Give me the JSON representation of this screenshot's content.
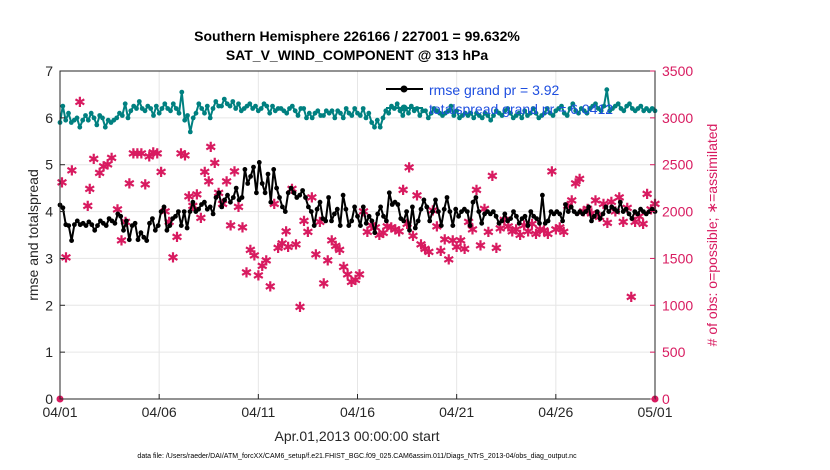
{
  "chart_data": {
    "type": "line",
    "title_line1": "Southern Hemisphere 226166 / 227001 = 99.632%",
    "title_line2": "SAT_V_WIND_COMPONENT @ 313 hPa",
    "xlabel": "Apr.01,2013 00:00:00 start",
    "ylabel_left": "rmse and totalspread",
    "ylabel_right": "# of obs: o=possible; ∗=assimilated",
    "footnote": "data file: /Users/raeder/DAI/ATM_forcXX/CAM6_setup/f.e21.FHIST_BGC.f09_025.CAM6assim.011/Diags_NTrS_2013-04/obs_diag_output.nc",
    "x_range": [
      0,
      30
    ],
    "x_ticks": [
      0,
      5,
      10,
      15,
      20,
      25,
      30
    ],
    "x_tick_labels": [
      "04/01",
      "04/06",
      "04/11",
      "04/16",
      "04/21",
      "04/26",
      "05/01"
    ],
    "ylim_left": [
      0,
      7
    ],
    "y_ticks_left": [
      "0",
      "1",
      "2",
      "3",
      "4",
      "5",
      "6",
      "7"
    ],
    "ylim_right": [
      0,
      3500
    ],
    "y_ticks_right": [
      "0",
      "500",
      "1000",
      "1500",
      "2000",
      "2500",
      "3000",
      "3500"
    ],
    "grid": true,
    "legend_position": "top-right",
    "colors": {
      "rmse": "#000000",
      "totalspread": "#008080",
      "obs": "#d81b60",
      "legend_text": "#1f4fe0",
      "right_axis": "#d81b60"
    },
    "series": [
      {
        "name": "rmse grand pr = 3.92",
        "color": "#000000",
        "values": [
          4.14,
          4.08,
          3.72,
          3.7,
          3.38,
          3.72,
          3.8,
          3.72,
          3.75,
          3.7,
          3.78,
          3.72,
          3.6,
          3.7,
          3.8,
          3.75,
          3.7,
          3.85,
          3.8,
          3.75,
          3.95,
          3.9,
          3.6,
          3.8,
          3.4,
          3.7,
          3.75,
          3.4,
          3.55,
          3.45,
          3.38,
          3.75,
          3.85,
          3.6,
          3.7,
          4.0,
          4.1,
          3.6,
          3.7,
          3.85,
          3.9,
          4.0,
          3.7,
          4.0,
          3.65,
          4.0,
          4.2,
          4.0,
          4.05,
          4.15,
          4.2,
          4.05,
          4.1,
          3.95,
          4.3,
          4.4,
          4.1,
          4.25,
          4.35,
          4.2,
          4.3,
          4.5,
          4.25,
          4.3,
          4.9,
          4.6,
          4.75,
          4.95,
          4.4,
          5.05,
          4.6,
          4.4,
          4.8,
          4.2,
          4.9,
          4.5,
          4.3,
          4.1,
          4.0,
          4.4,
          4.5,
          4.4,
          4.3,
          4.35,
          4.45,
          4.3,
          4.1,
          4.0,
          3.7,
          4.05,
          4.2,
          3.85,
          3.8,
          4.3,
          3.8,
          3.95,
          4.05,
          3.7,
          4.35,
          4.05,
          3.7,
          3.8,
          4.1,
          3.9,
          3.7,
          4.1,
          3.75,
          3.9,
          3.8,
          3.55,
          3.95,
          4.1,
          3.9,
          3.8,
          4.4,
          4.15,
          4.2,
          4.15,
          3.85,
          3.8,
          4.0,
          3.6,
          4.1,
          3.65,
          3.8,
          4.05,
          4.25,
          4.1,
          3.8,
          4.0,
          4.25,
          4.0,
          3.7,
          4.05,
          4.3,
          4.0,
          3.7,
          4.05,
          3.9,
          4.0,
          4.05,
          4.0,
          3.7,
          4.2,
          4.3,
          4.0,
          3.75,
          3.95,
          4.0,
          3.95,
          4.0,
          3.9,
          3.75,
          3.8,
          3.95,
          3.8,
          3.85,
          4.0,
          3.9,
          3.75,
          3.85,
          3.9,
          3.7,
          4.0,
          3.9,
          3.85,
          3.75,
          4.35,
          3.75,
          3.8,
          4.0,
          3.95,
          4.0,
          3.95,
          3.8,
          4.15,
          4.0,
          4.1,
          4.0,
          3.95,
          4.0,
          3.95,
          4.0,
          4.1,
          3.8,
          3.9,
          4.0,
          3.85,
          3.95,
          4.1,
          4.0,
          4.1,
          4.05,
          4.0,
          4.2,
          4.0,
          4.05,
          3.95,
          3.85,
          4.0,
          3.95,
          4.05,
          4.0,
          3.95,
          4.0,
          4.05,
          4.0
        ]
      },
      {
        "name": "totalspread grand pr = 6.0412",
        "color": "#008080",
        "values": [
          5.9,
          6.25,
          5.95,
          6.1,
          5.9,
          5.95,
          6.0,
          5.8,
          5.95,
          6.05,
          5.95,
          6.1,
          6.0,
          5.85,
          6.05,
          6.0,
          5.8,
          5.95,
          5.9,
          5.95,
          6.0,
          6.1,
          6.05,
          6.3,
          6.0,
          6.15,
          6.25,
          6.2,
          6.35,
          6.2,
          6.15,
          6.25,
          6.2,
          6.05,
          6.25,
          6.1,
          6.2,
          6.3,
          6.2,
          6.15,
          6.3,
          6.2,
          6.1,
          6.55,
          5.95,
          6.05,
          5.7,
          6.0,
          6.1,
          6.3,
          6.2,
          6.1,
          6.25,
          6.0,
          6.2,
          6.35,
          6.25,
          6.25,
          6.4,
          6.3,
          6.25,
          6.35,
          6.2,
          6.3,
          6.15,
          6.2,
          6.25,
          6.3,
          6.2,
          6.25,
          6.15,
          6.2,
          6.3,
          6.25,
          6.1,
          6.25,
          6.15,
          6.2,
          6.2,
          6.15,
          6.1,
          6.2,
          6.25,
          6.15,
          6.05,
          6.2,
          6.2,
          6.0,
          6.1,
          6.0,
          6.1,
          6.15,
          6.05,
          6.05,
          6.15,
          6.1,
          6.15,
          6.0,
          6.15,
          6.1,
          6.0,
          6.2,
          6.1,
          6.05,
          6.2,
          6.1,
          6.05,
          6.2,
          6.0,
          6.1,
          5.9,
          5.8,
          5.95,
          5.8,
          6.0,
          6.15,
          6.1,
          6.25,
          6.2,
          6.3,
          6.15,
          6.05,
          6.2,
          6.1,
          6.25,
          6.15,
          6.2,
          6.05,
          6.15,
          6.15,
          6.0,
          6.1,
          6.2,
          6.15,
          6.1,
          6.05,
          6.1,
          6.15,
          6.25,
          6.05,
          6.15,
          6.0,
          6.05,
          6.1,
          6.05,
          6.1,
          6.0,
          6.1,
          6.05,
          6.0,
          6.1,
          6.05,
          5.95,
          6.05,
          6.15,
          6.1,
          6.05,
          6.15,
          6.2,
          6.1,
          6.0,
          6.05,
          6.1,
          6.0,
          6.15,
          6.05,
          6.1,
          6.2,
          6.1,
          6.0,
          6.05,
          6.1,
          6.2,
          6.1,
          6.05,
          6.15,
          6.2,
          6.25,
          6.1,
          6.05,
          6.2,
          6.3,
          6.15,
          6.1,
          6.2,
          6.15,
          6.1,
          6.2,
          6.25,
          6.3,
          6.2,
          6.15,
          6.25,
          6.6,
          6.15,
          6.2,
          6.25,
          6.3,
          6.2,
          6.15,
          6.25,
          6.3,
          6.2,
          6.15,
          6.2,
          6.25,
          6.15,
          6.2,
          6.15,
          6.2,
          6.15
        ]
      },
      {
        "name": "obs assimilated",
        "color": "#d81b60",
        "axis": "right",
        "points": [
          [
            0.1,
            2310
          ],
          [
            0.3,
            1510
          ],
          [
            0.6,
            2440
          ],
          [
            1.0,
            3170
          ],
          [
            1.4,
            2060
          ],
          [
            1.5,
            2240
          ],
          [
            1.7,
            2560
          ],
          [
            2.0,
            2410
          ],
          [
            2.2,
            2480
          ],
          [
            2.4,
            2500
          ],
          [
            2.6,
            2570
          ],
          [
            2.9,
            2020
          ],
          [
            3.1,
            1690
          ],
          [
            3.3,
            1890
          ],
          [
            3.5,
            2300
          ],
          [
            3.7,
            2620
          ],
          [
            3.9,
            2620
          ],
          [
            4.1,
            2620
          ],
          [
            4.3,
            2290
          ],
          [
            4.5,
            2590
          ],
          [
            4.7,
            2630
          ],
          [
            4.9,
            2620
          ],
          [
            5.1,
            2420
          ],
          [
            5.3,
            2000
          ],
          [
            5.5,
            1890
          ],
          [
            5.7,
            1510
          ],
          [
            5.9,
            1730
          ],
          [
            6.1,
            2620
          ],
          [
            6.3,
            2600
          ],
          [
            6.5,
            2160
          ],
          [
            6.7,
            2060
          ],
          [
            6.9,
            2180
          ],
          [
            7.1,
            1930
          ],
          [
            7.3,
            2420
          ],
          [
            7.5,
            2320
          ],
          [
            7.6,
            2690
          ],
          [
            7.8,
            2520
          ],
          [
            8.0,
            2200
          ],
          [
            8.2,
            2080
          ],
          [
            8.4,
            2320
          ],
          [
            8.6,
            1850
          ],
          [
            8.8,
            2430
          ],
          [
            9.0,
            2050
          ],
          [
            9.2,
            1830
          ],
          [
            9.4,
            1350
          ],
          [
            9.6,
            1590
          ],
          [
            9.8,
            1530
          ],
          [
            10.0,
            1320
          ],
          [
            10.2,
            1420
          ],
          [
            10.4,
            1480
          ],
          [
            10.6,
            1200
          ],
          [
            10.8,
            2080
          ],
          [
            11.0,
            1610
          ],
          [
            11.2,
            1660
          ],
          [
            11.4,
            1790
          ],
          [
            11.5,
            1620
          ],
          [
            11.7,
            2240
          ],
          [
            11.9,
            1650
          ],
          [
            12.1,
            980
          ],
          [
            12.3,
            1900
          ],
          [
            12.5,
            1780
          ],
          [
            12.7,
            2150
          ],
          [
            12.9,
            1540
          ],
          [
            13.1,
            1890
          ],
          [
            13.3,
            1230
          ],
          [
            13.5,
            1480
          ],
          [
            13.7,
            1690
          ],
          [
            13.9,
            1630
          ],
          [
            14.1,
            1590
          ],
          [
            14.3,
            1410
          ],
          [
            14.5,
            1330
          ],
          [
            14.7,
            1250
          ],
          [
            14.9,
            1270
          ],
          [
            15.1,
            1330
          ],
          [
            15.3,
            2000
          ],
          [
            15.5,
            1780
          ],
          [
            15.7,
            1850
          ],
          [
            15.9,
            1830
          ],
          [
            16.1,
            1750
          ],
          [
            16.3,
            1770
          ],
          [
            16.5,
            1840
          ],
          [
            16.7,
            1830
          ],
          [
            16.9,
            1810
          ],
          [
            17.1,
            1790
          ],
          [
            17.3,
            2230
          ],
          [
            17.5,
            1870
          ],
          [
            17.6,
            2470
          ],
          [
            17.8,
            1740
          ],
          [
            18.0,
            2170
          ],
          [
            18.2,
            1650
          ],
          [
            18.4,
            1600
          ],
          [
            18.6,
            1570
          ],
          [
            18.8,
            2010
          ],
          [
            19.0,
            1840
          ],
          [
            19.2,
            1580
          ],
          [
            19.4,
            1700
          ],
          [
            19.6,
            1490
          ],
          [
            19.8,
            1690
          ],
          [
            20.0,
            1620
          ],
          [
            20.2,
            1690
          ],
          [
            20.4,
            1600
          ],
          [
            20.6,
            1890
          ],
          [
            20.8,
            1810
          ],
          [
            21.0,
            2230
          ],
          [
            21.2,
            1640
          ],
          [
            21.4,
            2030
          ],
          [
            21.6,
            1780
          ],
          [
            21.8,
            2380
          ],
          [
            22.0,
            1610
          ],
          [
            22.2,
            1820
          ],
          [
            22.4,
            1910
          ],
          [
            22.6,
            1840
          ],
          [
            22.8,
            1790
          ],
          [
            23.0,
            1810
          ],
          [
            23.2,
            1750
          ],
          [
            23.4,
            1850
          ],
          [
            23.6,
            1790
          ],
          [
            23.8,
            1870
          ],
          [
            24.0,
            1760
          ],
          [
            24.2,
            1810
          ],
          [
            24.4,
            1800
          ],
          [
            24.6,
            1760
          ],
          [
            24.8,
            2430
          ],
          [
            25.0,
            1810
          ],
          [
            25.2,
            1830
          ],
          [
            25.4,
            1780
          ],
          [
            25.6,
            2060
          ],
          [
            25.8,
            2120
          ],
          [
            26.0,
            2300
          ],
          [
            26.2,
            2350
          ],
          [
            26.4,
            2000
          ],
          [
            26.6,
            2030
          ],
          [
            26.8,
            1980
          ],
          [
            27.0,
            2120
          ],
          [
            27.2,
            1940
          ],
          [
            27.4,
            2080
          ],
          [
            27.6,
            1880
          ],
          [
            27.8,
            2100
          ],
          [
            28.0,
            2000
          ],
          [
            28.2,
            2150
          ],
          [
            28.4,
            1890
          ],
          [
            28.6,
            2040
          ],
          [
            28.8,
            1090
          ],
          [
            29.0,
            1890
          ],
          [
            29.2,
            1950
          ],
          [
            29.4,
            1870
          ],
          [
            29.6,
            2190
          ],
          [
            29.8,
            2020
          ],
          [
            30.0,
            2080
          ]
        ]
      },
      {
        "name": "obs possible",
        "color": "#d81b60",
        "axis": "right",
        "points": [
          [
            0,
            0
          ],
          [
            30,
            0
          ]
        ]
      }
    ]
  }
}
